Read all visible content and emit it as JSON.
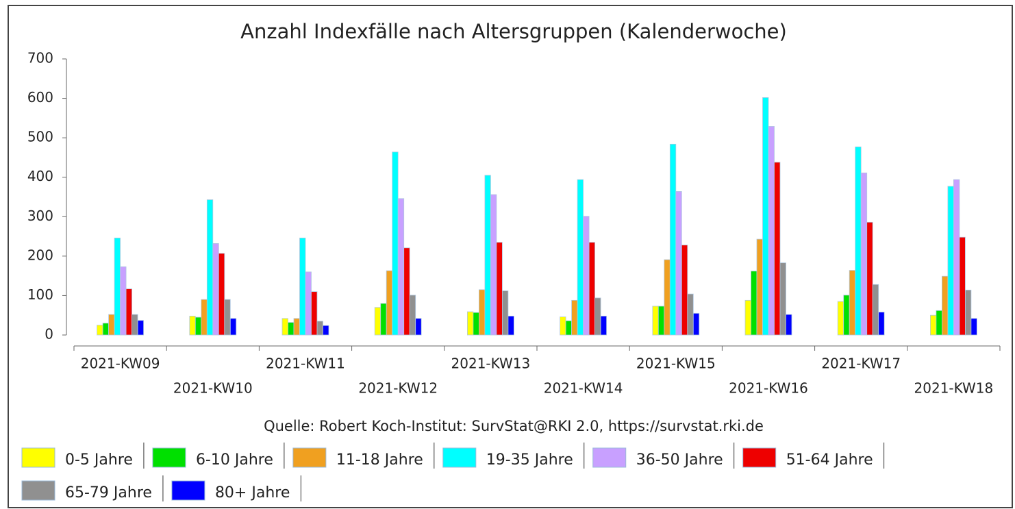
{
  "chart_data": {
    "type": "bar",
    "title": "Anzahl Indexfälle nach Altersgruppen (Kalenderwoche)",
    "note": "Quelle: Robert Koch-Institut: SurvStat@RKI 2.0, https://survstat.rki.de",
    "categories": [
      "2021-KW09",
      "2021-KW10",
      "2021-KW11",
      "2021-KW12",
      "2021-KW13",
      "2021-KW14",
      "2021-KW15",
      "2021-KW16",
      "2021-KW17",
      "2021-KW18"
    ],
    "series": [
      {
        "name": "0-5 Jahre",
        "color": "#ffff00",
        "values": [
          25,
          48,
          42,
          70,
          59,
          46,
          73,
          88,
          85,
          50
        ]
      },
      {
        "name": "6-10 Jahre",
        "color": "#00e000",
        "values": [
          30,
          45,
          32,
          80,
          57,
          36,
          73,
          162,
          101,
          62
        ]
      },
      {
        "name": "11-18 Jahre",
        "color": "#f0a020",
        "values": [
          52,
          90,
          42,
          163,
          115,
          88,
          191,
          243,
          164,
          149
        ]
      },
      {
        "name": "19-35 Jahre",
        "color": "#00ffff",
        "values": [
          246,
          343,
          246,
          464,
          405,
          394,
          484,
          602,
          477,
          377
        ]
      },
      {
        "name": "36-50 Jahre",
        "color": "#c8a0ff",
        "values": [
          173,
          232,
          160,
          346,
          356,
          301,
          364,
          529,
          411,
          394
        ]
      },
      {
        "name": "51-64 Jahre",
        "color": "#ee0000",
        "values": [
          117,
          207,
          110,
          221,
          235,
          235,
          228,
          438,
          286,
          248
        ]
      },
      {
        "name": "65-79 Jahre",
        "color": "#909090",
        "values": [
          52,
          90,
          35,
          101,
          112,
          94,
          104,
          183,
          128,
          114
        ]
      },
      {
        "name": "80+ Jahre",
        "color": "#0000ff",
        "values": [
          37,
          42,
          24,
          42,
          48,
          48,
          55,
          52,
          58,
          42
        ]
      }
    ],
    "ylim": [
      0,
      700
    ],
    "yticks": [
      0,
      100,
      200,
      300,
      400,
      500,
      600,
      700
    ]
  }
}
